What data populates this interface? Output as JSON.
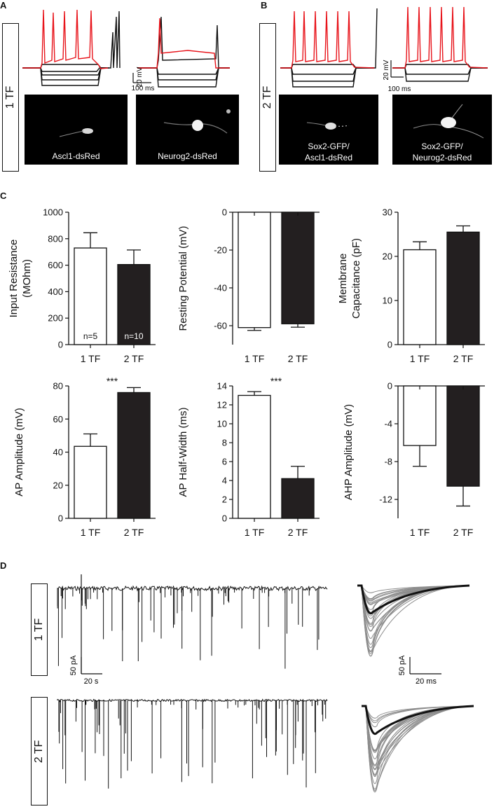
{
  "panels": {
    "A": "A",
    "B": "B",
    "C": "C",
    "D": "D"
  },
  "panel_a": {
    "group_label": "1 TF",
    "scale_v": "20 mV",
    "scale_t": "100 ms",
    "images": [
      {
        "caption": "Ascl1-dsRed"
      },
      {
        "caption": "Neurog2-dsRed"
      }
    ]
  },
  "panel_b": {
    "group_label": "2 TF",
    "scale_v": "20 mV",
    "scale_t": "100 ms",
    "images": [
      {
        "caption_line1": "Sox2-GFP/",
        "caption_line2": "Ascl1-dsRed"
      },
      {
        "caption_line1": "Sox2-GFP/",
        "caption_line2": "Neurog2-dsRed"
      }
    ]
  },
  "panel_d": {
    "row1_label": "1 TF",
    "row2_label": "2 TF",
    "scale_left_i": "50 pA",
    "scale_left_t": "20 s",
    "scale_right_i": "50 pA",
    "scale_right_t": "20 ms"
  },
  "colors": {
    "bar_1tf": "#ffffff",
    "bar_2tf": "#231f20",
    "trace_red": "#e8141b",
    "trace_black": "#111111",
    "trace_grey": "#8c8c8c"
  },
  "chart_data": [
    {
      "type": "bar",
      "ylabel": "Input Resistance\n(MOhm)",
      "categories": [
        "1 TF",
        "2 TF"
      ],
      "values": [
        730,
        605
      ],
      "errors": [
        115,
        110
      ],
      "ylim": [
        0,
        1000
      ],
      "yticks": [
        "0",
        "200",
        "400",
        "600",
        "800",
        "1000"
      ],
      "bar_labels": [
        "n=5",
        "n=10"
      ],
      "significance": ""
    },
    {
      "type": "bar",
      "ylabel": "Resting Potential (mV)",
      "categories": [
        "1 TF",
        "2 TF"
      ],
      "values": [
        -61,
        -59
      ],
      "errors": [
        1.5,
        1.8
      ],
      "ylim": [
        -70,
        0
      ],
      "yticks": [
        "0",
        "-20",
        "-40",
        "-60"
      ],
      "bar_labels": [
        "",
        ""
      ],
      "significance": ""
    },
    {
      "type": "bar",
      "ylabel": "Membrane\nCapacitance (pF)",
      "categories": [
        "1 TF",
        "2 TF"
      ],
      "values": [
        21.5,
        25.5
      ],
      "errors": [
        1.8,
        1.4
      ],
      "ylim": [
        0,
        30
      ],
      "yticks": [
        "0",
        "10",
        "20",
        "30"
      ],
      "bar_labels": [
        "",
        ""
      ],
      "significance": ""
    },
    {
      "type": "bar",
      "ylabel": "AP Amplitude (mV)",
      "categories": [
        "1 TF",
        "2 TF"
      ],
      "values": [
        43.5,
        76
      ],
      "errors": [
        7.5,
        3
      ],
      "ylim": [
        0,
        80
      ],
      "yticks": [
        "0",
        "20",
        "40",
        "60",
        "80"
      ],
      "bar_labels": [
        "",
        ""
      ],
      "significance": "***"
    },
    {
      "type": "bar",
      "ylabel": "AP Half-Width (ms)",
      "categories": [
        "1 TF",
        "2 TF"
      ],
      "values": [
        13,
        4.2
      ],
      "errors": [
        0.4,
        1.3
      ],
      "ylim": [
        0,
        14
      ],
      "yticks": [
        "0",
        "2",
        "4",
        "6",
        "8",
        "10",
        "12",
        "14"
      ],
      "bar_labels": [
        "",
        ""
      ],
      "significance": "***"
    },
    {
      "type": "bar",
      "ylabel": "AHP Amplitude (mV)",
      "categories": [
        "1 TF",
        "2 TF"
      ],
      "values": [
        -6.3,
        -10.6
      ],
      "errors": [
        2.2,
        2.1
      ],
      "ylim": [
        -14,
        0
      ],
      "yticks": [
        "0",
        "-4",
        "-8",
        "-12"
      ],
      "bar_labels": [
        "",
        ""
      ],
      "significance": ""
    }
  ]
}
